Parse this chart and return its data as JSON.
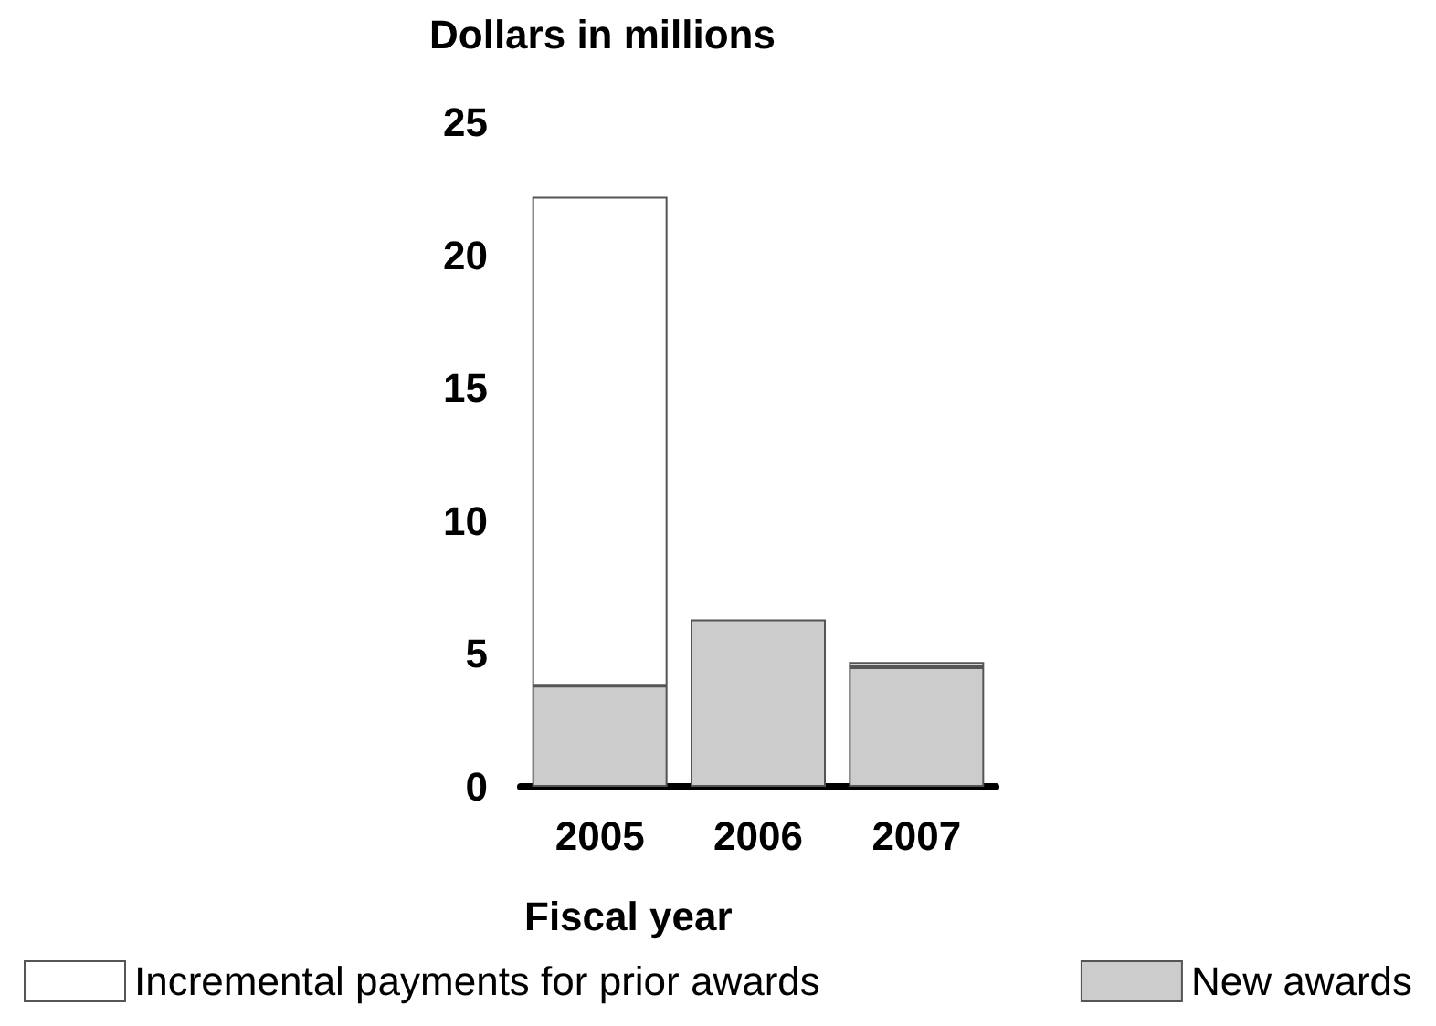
{
  "chart_data": {
    "type": "bar",
    "stacked": true,
    "ylabel": "Dollars in millions",
    "xlabel": "Fiscal year",
    "categories": [
      "2005",
      "2006",
      "2007"
    ],
    "series": [
      {
        "name": "New awards",
        "color": "#cccccc",
        "values": [
          3.8,
          6.3,
          4.5
        ]
      },
      {
        "name": "Incremental payments for prior awards",
        "color": "#ffffff",
        "values": [
          18.4,
          null,
          0.2
        ]
      }
    ],
    "ylim": [
      0,
      25
    ],
    "yticks": [
      0,
      5,
      10,
      15,
      20,
      25
    ],
    "grid": false,
    "legend": "bottom"
  }
}
